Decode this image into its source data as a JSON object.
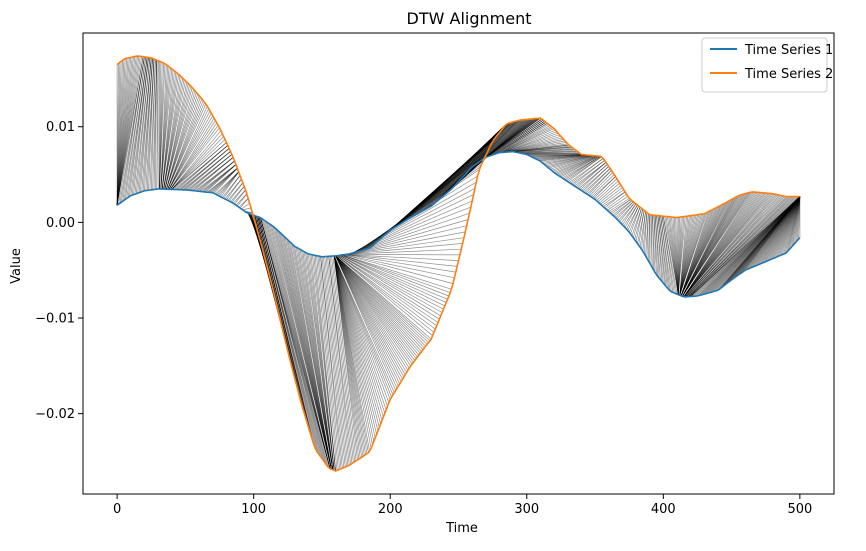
{
  "chart_data": {
    "type": "line",
    "title": "DTW Alignment",
    "xlabel": "Time",
    "ylabel": "Value",
    "xlim": [
      -25,
      525
    ],
    "ylim": [
      -0.0284,
      0.0198
    ],
    "grid": false,
    "legend_position": "top-right",
    "x_ticks": [
      {
        "value": 0,
        "label": "0"
      },
      {
        "value": 100,
        "label": "100"
      },
      {
        "value": 200,
        "label": "200"
      },
      {
        "value": 300,
        "label": "300"
      },
      {
        "value": 400,
        "label": "400"
      },
      {
        "value": 500,
        "label": "500"
      }
    ],
    "y_ticks": [
      {
        "value": 0.01,
        "label": "0.01"
      },
      {
        "value": 0.0,
        "label": "0.00"
      },
      {
        "value": -0.01,
        "label": "−0.01"
      },
      {
        "value": -0.02,
        "label": "−0.02"
      }
    ],
    "series": [
      {
        "name": "Time Series 1",
        "color": "#1f77b4",
        "points": [
          [
            0,
            0.0018
          ],
          [
            10,
            0.0028
          ],
          [
            20,
            0.0033
          ],
          [
            30,
            0.0035
          ],
          [
            50,
            0.0034
          ],
          [
            70,
            0.0031
          ],
          [
            85,
            0.002
          ],
          [
            95,
            0.001
          ],
          [
            105,
            0.0005
          ],
          [
            115,
            -0.0005
          ],
          [
            130,
            -0.0025
          ],
          [
            140,
            -0.0033
          ],
          [
            150,
            -0.0036
          ],
          [
            160,
            -0.0035
          ],
          [
            170,
            -0.0033
          ],
          [
            185,
            -0.0027
          ],
          [
            200,
            -0.0008
          ],
          [
            215,
            0.0005
          ],
          [
            230,
            0.0017
          ],
          [
            245,
            0.0035
          ],
          [
            260,
            0.0058
          ],
          [
            270,
            0.0068
          ],
          [
            280,
            0.0073
          ],
          [
            290,
            0.0074
          ],
          [
            300,
            0.0071
          ],
          [
            310,
            0.0064
          ],
          [
            320,
            0.0052
          ],
          [
            335,
            0.0038
          ],
          [
            350,
            0.0024
          ],
          [
            365,
            0.0005
          ],
          [
            375,
            -0.001
          ],
          [
            385,
            -0.003
          ],
          [
            395,
            -0.0055
          ],
          [
            405,
            -0.0072
          ],
          [
            415,
            -0.0078
          ],
          [
            425,
            -0.0077
          ],
          [
            440,
            -0.0071
          ],
          [
            450,
            -0.006
          ],
          [
            460,
            -0.005
          ],
          [
            470,
            -0.0044
          ],
          [
            480,
            -0.0038
          ],
          [
            490,
            -0.0032
          ],
          [
            500,
            -0.0016
          ]
        ]
      },
      {
        "name": "Time Series 2",
        "color": "#ff7f0e",
        "points": [
          [
            0,
            0.0165
          ],
          [
            5,
            0.0171
          ],
          [
            15,
            0.0174
          ],
          [
            25,
            0.0172
          ],
          [
            35,
            0.0166
          ],
          [
            45,
            0.0155
          ],
          [
            55,
            0.0141
          ],
          [
            65,
            0.0124
          ],
          [
            75,
            0.0099
          ],
          [
            85,
            0.0068
          ],
          [
            95,
            0.003
          ],
          [
            105,
            -0.002
          ],
          [
            115,
            -0.0075
          ],
          [
            125,
            -0.0135
          ],
          [
            135,
            -0.019
          ],
          [
            145,
            -0.0237
          ],
          [
            155,
            -0.0257
          ],
          [
            160,
            -0.026
          ],
          [
            170,
            -0.0254
          ],
          [
            185,
            -0.024
          ],
          [
            200,
            -0.0185
          ],
          [
            215,
            -0.015
          ],
          [
            230,
            -0.0122
          ],
          [
            245,
            -0.007
          ],
          [
            255,
            -0.001
          ],
          [
            265,
            0.0055
          ],
          [
            275,
            0.0085
          ],
          [
            285,
            0.0103
          ],
          [
            295,
            0.0107
          ],
          [
            310,
            0.0109
          ],
          [
            320,
            0.0098
          ],
          [
            330,
            0.0082
          ],
          [
            340,
            0.0071
          ],
          [
            355,
            0.0069
          ],
          [
            365,
            0.0048
          ],
          [
            375,
            0.0025
          ],
          [
            390,
            0.0008
          ],
          [
            410,
            0.0005
          ],
          [
            430,
            0.0009
          ],
          [
            445,
            0.002
          ],
          [
            455,
            0.0028
          ],
          [
            465,
            0.0032
          ],
          [
            480,
            0.003
          ],
          [
            490,
            0.0027
          ],
          [
            500,
            0.0027
          ]
        ]
      }
    ],
    "alignment": {
      "color": "#000000",
      "segments": [
        [
          0,
          19
        ],
        [
          30,
          30
        ],
        [
          40,
          80
        ],
        [
          55,
          85
        ],
        [
          63,
          87
        ],
        [
          75,
          89
        ],
        [
          88,
          95
        ],
        [
          95,
          100
        ],
        [
          105,
          156
        ],
        [
          135,
          158
        ],
        [
          145,
          160
        ],
        [
          158,
          175
        ],
        [
          160,
          230
        ],
        [
          165,
          245
        ],
        [
          172,
          262
        ],
        [
          180,
          270
        ],
        [
          200,
          280
        ],
        [
          225,
          290
        ],
        [
          245,
          300
        ],
        [
          265,
          310
        ],
        [
          280,
          315
        ],
        [
          285,
          330
        ],
        [
          300,
          340
        ],
        [
          318,
          350
        ],
        [
          345,
          362
        ],
        [
          360,
          375
        ],
        [
          410,
          400
        ],
        [
          415,
          480
        ],
        [
          420,
          500
        ]
      ]
    }
  }
}
